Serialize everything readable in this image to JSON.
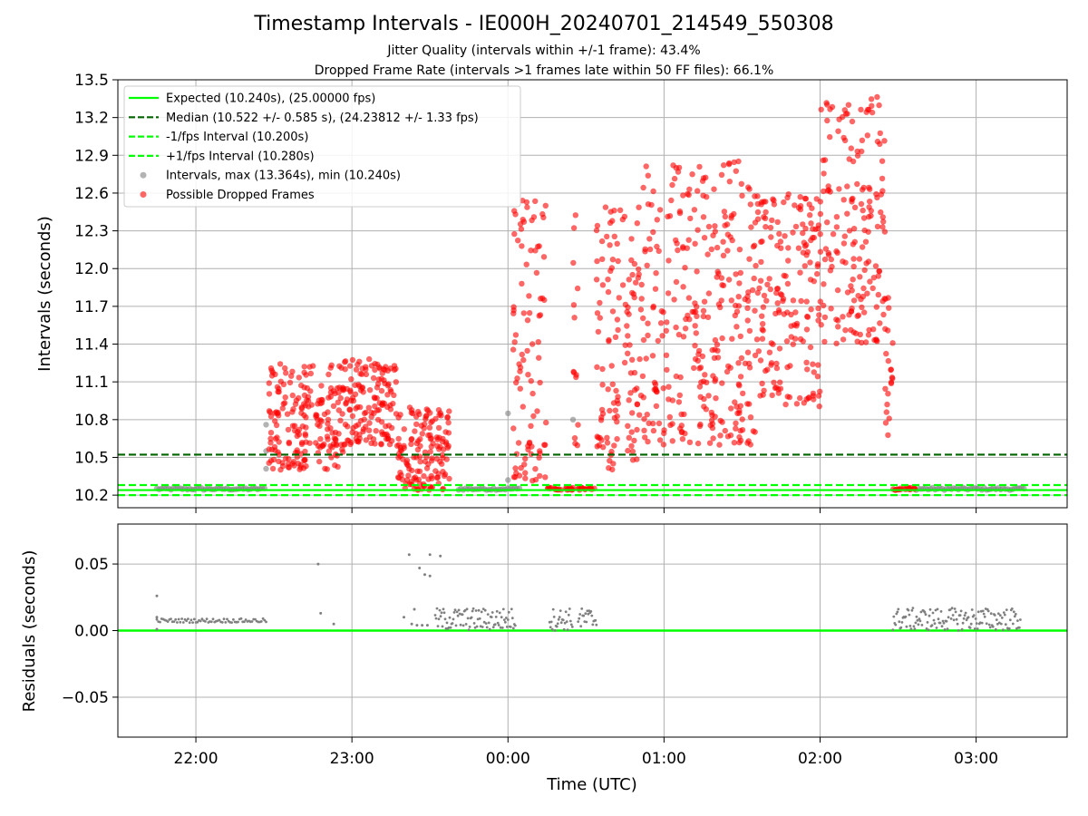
{
  "figure": {
    "title": "Timestamp Intervals - IE000H_20240701_214549_550308",
    "subtitle_lines": [
      "Jitter Quality (intervals within +/-1 frame): 43.4%",
      "Dropped Frame Rate (intervals >1 frames late within 50 FF files): 66.1%"
    ],
    "colors": {
      "expected": "#00ff00",
      "median": "#006400",
      "fps_interval": "#00ff00",
      "intervals": "#808080",
      "dropped": "#ff0000",
      "grid": "#b0b0b0"
    }
  },
  "chart_data": [
    {
      "type": "scatter",
      "panel": "top",
      "ylabel": "Intervals (seconds)",
      "ylim": [
        10.1,
        13.5
      ],
      "xlim": [
        "21:30",
        "03:35"
      ],
      "yticks": [
        10.2,
        10.5,
        10.8,
        11.1,
        11.4,
        11.7,
        12.0,
        12.3,
        12.6,
        12.9,
        13.2,
        13.5
      ],
      "grid": true,
      "legend_position": "upper-left",
      "reference_lines": [
        {
          "name": "Expected (10.240s), (25.00000 fps)",
          "y": 10.24,
          "style": "solid"
        },
        {
          "name": "Median (10.522 +/- 0.585 s), (24.23812 +/- 1.33 fps)",
          "y": 10.522,
          "style": "dashed"
        },
        {
          "name": "-1/fps Interval (10.200s)",
          "y": 10.2,
          "style": "dashed"
        },
        {
          "name": "+1/fps Interval (10.280s)",
          "y": 10.28,
          "style": "dashed"
        }
      ],
      "series": [
        {
          "name": "Intervals, max (13.364s), min (10.240s)",
          "color": "#808080",
          "segments": [
            {
              "start": "21:45",
              "end": "22:27",
              "y_min": 10.24,
              "y_max": 10.26
            },
            {
              "start": "23:41",
              "end": "00:05",
              "y_min": 10.24,
              "y_max": 10.26
            },
            {
              "start": "02:37",
              "end": "03:19",
              "y_min": 10.24,
              "y_max": 10.26
            }
          ],
          "points": [
            {
              "x": "22:27",
              "y": 10.41
            },
            {
              "x": "22:27",
              "y": 10.55
            },
            {
              "x": "22:27",
              "y": 10.76
            },
            {
              "x": "00:00",
              "y": 10.32
            },
            {
              "x": "00:00",
              "y": 10.85
            },
            {
              "x": "00:25",
              "y": 10.8
            }
          ]
        },
        {
          "name": "Possible Dropped Frames",
          "color": "#ff0000",
          "clusters": [
            {
              "start": "22:28",
              "end": "22:57",
              "y_min": 10.4,
              "y_max": 11.25
            },
            {
              "start": "22:57",
              "end": "23:17",
              "y_min": 10.6,
              "y_max": 11.29
            },
            {
              "start": "23:17",
              "end": "23:38",
              "y_min": 10.24,
              "y_max": 10.9
            },
            {
              "start": "00:02",
              "end": "00:15",
              "y_min": 10.3,
              "y_max": 12.64
            },
            {
              "start": "00:15",
              "end": "00:25",
              "y_min": 10.24,
              "y_max": 10.26
            },
            {
              "start": "00:25",
              "end": "00:27",
              "y_min": 10.5,
              "y_max": 12.45
            },
            {
              "start": "00:27",
              "end": "00:34",
              "y_min": 10.24,
              "y_max": 10.26
            },
            {
              "start": "00:34",
              "end": "00:52",
              "y_min": 10.4,
              "y_max": 12.5
            },
            {
              "start": "00:52",
              "end": "01:35",
              "y_min": 10.6,
              "y_max": 12.88
            },
            {
              "start": "01:35",
              "end": "02:00",
              "y_min": 10.9,
              "y_max": 12.6
            },
            {
              "start": "02:00",
              "end": "02:25",
              "y_min": 11.4,
              "y_max": 13.364
            },
            {
              "start": "02:25",
              "end": "02:28",
              "y_min": 10.5,
              "y_max": 11.8
            },
            {
              "start": "02:28",
              "end": "02:37",
              "y_min": 10.24,
              "y_max": 10.26
            }
          ]
        }
      ]
    },
    {
      "type": "scatter",
      "panel": "bottom",
      "xlabel": "Time (UTC)",
      "ylabel": "Residuals (seconds)",
      "ylim": [
        -0.08,
        0.08
      ],
      "yticks": [
        -0.05,
        0.0,
        0.05
      ],
      "ytick_labels": [
        "−0.05",
        "0.00",
        "0.05"
      ],
      "xticks": [
        "22:00",
        "23:00",
        "00:00",
        "01:00",
        "02:00",
        "03:00"
      ],
      "grid": true,
      "zero_line_color": "#00ff00",
      "series": [
        {
          "name": "Residuals",
          "color": "#808080",
          "segments": [
            {
              "start": "21:45",
              "end": "22:27",
              "y_min": 0.006,
              "y_max": 0.009
            },
            {
              "start": "23:32",
              "end": "00:03",
              "y_min": 0.0,
              "y_max": 0.017
            },
            {
              "start": "00:16",
              "end": "00:25",
              "y_min": 0.0,
              "y_max": 0.017
            },
            {
              "start": "00:27",
              "end": "00:34",
              "y_min": 0.0,
              "y_max": 0.017
            },
            {
              "start": "02:28",
              "end": "03:17",
              "y_min": 0.0,
              "y_max": 0.017
            }
          ],
          "points": [
            {
              "x": "21:45",
              "y": 0.026
            },
            {
              "x": "21:45",
              "y": 0.01
            },
            {
              "x": "21:45",
              "y": 0.001
            },
            {
              "x": "22:47",
              "y": 0.05
            },
            {
              "x": "22:48",
              "y": 0.013
            },
            {
              "x": "22:53",
              "y": 0.005
            },
            {
              "x": "23:20",
              "y": 0.01
            },
            {
              "x": "23:22",
              "y": 0.057
            },
            {
              "x": "23:23",
              "y": 0.005
            },
            {
              "x": "23:24",
              "y": 0.016
            },
            {
              "x": "23:25",
              "y": 0.004
            },
            {
              "x": "23:26",
              "y": 0.047
            },
            {
              "x": "23:27",
              "y": 0.004
            },
            {
              "x": "23:28",
              "y": 0.042
            },
            {
              "x": "23:29",
              "y": 0.004
            },
            {
              "x": "23:30",
              "y": 0.057
            },
            {
              "x": "23:30",
              "y": 0.041
            },
            {
              "x": "23:34",
              "y": 0.056
            }
          ]
        }
      ]
    }
  ]
}
